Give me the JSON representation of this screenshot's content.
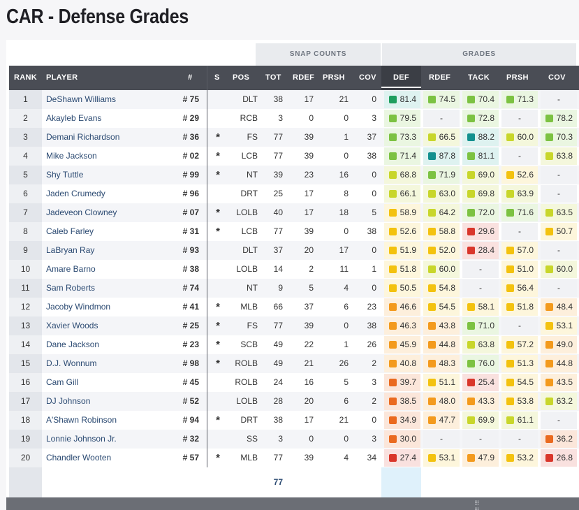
{
  "page_title": "CAR - Defense Grades",
  "group_headers": {
    "snap_counts": "SNAP COUNTS",
    "grades": "GRADES"
  },
  "columns": {
    "rank": "RANK",
    "player": "PLAYER",
    "num": "#",
    "s": "S",
    "pos": "POS",
    "tot": "TOT",
    "rdef": "RDEF",
    "prsh": "PRSH",
    "cov": "COV",
    "g_def": "DEF",
    "g_rdef": "RDEF",
    "g_tack": "TACK",
    "g_prsh": "PRSH",
    "g_cov": "COV"
  },
  "colors": {
    "dark_green": "#1e9e5e",
    "green": "#7cc242",
    "yellow_green": "#c8d62b",
    "yellow": "#f3c20f",
    "orange": "#f39a1d",
    "dark_orange": "#ea6a1f",
    "red": "#d9362b",
    "teal": "#13908f"
  },
  "rows": [
    {
      "rank": "1",
      "player": "DeShawn Williams",
      "num": "# 75",
      "s": "",
      "pos": "DLT",
      "tot": "38",
      "rdef": "17",
      "prsh": "21",
      "cov": "0",
      "def": "81.4",
      "g_rdef": "74.5",
      "tack": "70.4",
      "g_prsh": "71.3",
      "g_cov": "-"
    },
    {
      "rank": "2",
      "player": "Akayleb Evans",
      "num": "# 29",
      "s": "",
      "pos": "RCB",
      "tot": "3",
      "rdef": "0",
      "prsh": "0",
      "cov": "3",
      "def": "79.5",
      "g_rdef": "-",
      "tack": "72.8",
      "g_prsh": "-",
      "g_cov": "78.2"
    },
    {
      "rank": "3",
      "player": "Demani Richardson",
      "num": "# 36",
      "s": "*",
      "pos": "FS",
      "tot": "77",
      "rdef": "39",
      "prsh": "1",
      "cov": "37",
      "def": "73.3",
      "g_rdef": "66.5",
      "tack": "88.2",
      "g_prsh": "60.0",
      "g_cov": "70.3"
    },
    {
      "rank": "4",
      "player": "Mike Jackson",
      "num": "# 02",
      "s": "*",
      "pos": "LCB",
      "tot": "77",
      "rdef": "39",
      "prsh": "0",
      "cov": "38",
      "def": "71.4",
      "g_rdef": "87.8",
      "tack": "81.1",
      "g_prsh": "-",
      "g_cov": "63.8"
    },
    {
      "rank": "5",
      "player": "Shy Tuttle",
      "num": "# 99",
      "s": "*",
      "pos": "NT",
      "tot": "39",
      "rdef": "23",
      "prsh": "16",
      "cov": "0",
      "def": "68.8",
      "g_rdef": "71.9",
      "tack": "69.0",
      "g_prsh": "52.6",
      "g_cov": "-"
    },
    {
      "rank": "6",
      "player": "Jaden Crumedy",
      "num": "# 96",
      "s": "",
      "pos": "DRT",
      "tot": "25",
      "rdef": "17",
      "prsh": "8",
      "cov": "0",
      "def": "66.1",
      "g_rdef": "63.0",
      "tack": "69.8",
      "g_prsh": "63.9",
      "g_cov": "-"
    },
    {
      "rank": "7",
      "player": "Jadeveon Clowney",
      "num": "# 07",
      "s": "*",
      "pos": "LOLB",
      "tot": "40",
      "rdef": "17",
      "prsh": "18",
      "cov": "5",
      "def": "58.9",
      "g_rdef": "64.2",
      "tack": "72.0",
      "g_prsh": "71.6",
      "g_cov": "63.5"
    },
    {
      "rank": "8",
      "player": "Caleb Farley",
      "num": "# 31",
      "s": "*",
      "pos": "LCB",
      "tot": "77",
      "rdef": "39",
      "prsh": "0",
      "cov": "38",
      "def": "52.6",
      "g_rdef": "58.8",
      "tack": "29.6",
      "g_prsh": "-",
      "g_cov": "50.7"
    },
    {
      "rank": "9",
      "player": "LaBryan Ray",
      "num": "# 93",
      "s": "",
      "pos": "DLT",
      "tot": "37",
      "rdef": "20",
      "prsh": "17",
      "cov": "0",
      "def": "51.9",
      "g_rdef": "52.0",
      "tack": "28.4",
      "g_prsh": "57.0",
      "g_cov": "-"
    },
    {
      "rank": "10",
      "player": "Amare Barno",
      "num": "# 38",
      "s": "",
      "pos": "LOLB",
      "tot": "14",
      "rdef": "2",
      "prsh": "11",
      "cov": "1",
      "def": "51.8",
      "g_rdef": "60.0",
      "tack": "-",
      "g_prsh": "51.0",
      "g_cov": "60.0"
    },
    {
      "rank": "11",
      "player": "Sam Roberts",
      "num": "# 74",
      "s": "",
      "pos": "NT",
      "tot": "9",
      "rdef": "5",
      "prsh": "4",
      "cov": "0",
      "def": "50.5",
      "g_rdef": "54.8",
      "tack": "-",
      "g_prsh": "56.4",
      "g_cov": "-"
    },
    {
      "rank": "12",
      "player": "Jacoby Windmon",
      "num": "# 41",
      "s": "*",
      "pos": "MLB",
      "tot": "66",
      "rdef": "37",
      "prsh": "6",
      "cov": "23",
      "def": "46.6",
      "g_rdef": "54.5",
      "tack": "58.1",
      "g_prsh": "51.8",
      "g_cov": "48.4"
    },
    {
      "rank": "13",
      "player": "Xavier Woods",
      "num": "# 25",
      "s": "*",
      "pos": "FS",
      "tot": "77",
      "rdef": "39",
      "prsh": "0",
      "cov": "38",
      "def": "46.3",
      "g_rdef": "43.8",
      "tack": "71.0",
      "g_prsh": "-",
      "g_cov": "53.1"
    },
    {
      "rank": "14",
      "player": "Dane Jackson",
      "num": "# 23",
      "s": "*",
      "pos": "SCB",
      "tot": "49",
      "rdef": "22",
      "prsh": "1",
      "cov": "26",
      "def": "45.9",
      "g_rdef": "44.8",
      "tack": "63.8",
      "g_prsh": "57.2",
      "g_cov": "49.0"
    },
    {
      "rank": "15",
      "player": "D.J. Wonnum",
      "num": "# 98",
      "s": "*",
      "pos": "ROLB",
      "tot": "49",
      "rdef": "21",
      "prsh": "26",
      "cov": "2",
      "def": "40.8",
      "g_rdef": "48.3",
      "tack": "76.0",
      "g_prsh": "51.3",
      "g_cov": "44.8"
    },
    {
      "rank": "16",
      "player": "Cam Gill",
      "num": "# 45",
      "s": "",
      "pos": "ROLB",
      "tot": "24",
      "rdef": "16",
      "prsh": "5",
      "cov": "3",
      "def": "39.7",
      "g_rdef": "51.1",
      "tack": "25.4",
      "g_prsh": "54.5",
      "g_cov": "43.5"
    },
    {
      "rank": "17",
      "player": "DJ Johnson",
      "num": "# 52",
      "s": "",
      "pos": "LOLB",
      "tot": "28",
      "rdef": "20",
      "prsh": "6",
      "cov": "2",
      "def": "38.5",
      "g_rdef": "48.0",
      "tack": "43.3",
      "g_prsh": "53.8",
      "g_cov": "63.2"
    },
    {
      "rank": "18",
      "player": "A'Shawn Robinson",
      "num": "# 94",
      "s": "*",
      "pos": "DRT",
      "tot": "38",
      "rdef": "17",
      "prsh": "21",
      "cov": "0",
      "def": "34.9",
      "g_rdef": "47.7",
      "tack": "69.9",
      "g_prsh": "61.1",
      "g_cov": "-"
    },
    {
      "rank": "19",
      "player": "Lonnie Johnson Jr.",
      "num": "# 32",
      "s": "",
      "pos": "SS",
      "tot": "3",
      "rdef": "0",
      "prsh": "0",
      "cov": "3",
      "def": "30.0",
      "g_rdef": "-",
      "tack": "-",
      "g_prsh": "-",
      "g_cov": "36.2"
    },
    {
      "rank": "20",
      "player": "Chandler Wooten",
      "num": "# 57",
      "s": "*",
      "pos": "MLB",
      "tot": "77",
      "rdef": "39",
      "prsh": "4",
      "cov": "34",
      "def": "27.4",
      "g_rdef": "53.1",
      "tack": "47.9",
      "g_prsh": "53.2",
      "g_cov": "26.8"
    }
  ],
  "footer": {
    "tot": "77"
  },
  "scrollbar": {
    "grip_icon": "grip-dots-icon"
  }
}
